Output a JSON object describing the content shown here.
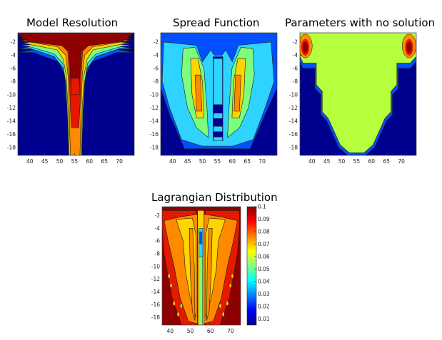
{
  "chart_data": [
    {
      "type": "heatmap",
      "title": "Model Resolution",
      "x_ticks": [
        40,
        45,
        50,
        55,
        60,
        65,
        70
      ],
      "y_ticks": [
        -2,
        -4,
        -6,
        -8,
        -10,
        -12,
        -14,
        -16,
        -18
      ],
      "xlim": [
        36,
        75
      ],
      "ylim": [
        -19.2,
        -0.6
      ],
      "description_of_field": "high values along top edge and a narrow vertical plume centered near x=55 reaching to the bottom; low values elsewhere"
    },
    {
      "type": "heatmap",
      "title": "Spread Function",
      "x_ticks": [
        40,
        45,
        50,
        55,
        60,
        65,
        70
      ],
      "y_ticks": [
        -2,
        -4,
        -6,
        -8,
        -10,
        -12,
        -14,
        -16,
        -18
      ],
      "xlim": [
        36,
        75
      ],
      "ylim": [
        -19.2,
        -0.6
      ]
    },
    {
      "type": "heatmap",
      "title": "Parameters with no solution",
      "x_ticks": [
        40,
        45,
        50,
        55,
        60,
        65,
        70
      ],
      "y_ticks": [
        -2,
        -4,
        -6,
        -8,
        -10,
        -12,
        -14,
        -16,
        -18
      ],
      "xlim": [
        36,
        75
      ],
      "ylim": [
        -19.2,
        -0.6
      ]
    },
    {
      "type": "heatmap",
      "title": "Lagrangian Distribution",
      "x_ticks": [
        40,
        50,
        60,
        70
      ],
      "y_ticks": [
        -2,
        -4,
        -6,
        -8,
        -10,
        -12,
        -14,
        -16,
        -18
      ],
      "xlim": [
        36,
        75
      ],
      "ylim": [
        -19.2,
        -0.6
      ],
      "colorbar": {
        "ticks": [
          "0.1",
          "0.09",
          "0.08",
          "0.07",
          "0.06",
          "0.05",
          "0.04",
          "0.03",
          "0.02",
          "0.01"
        ],
        "range": [
          0.005,
          0.1
        ],
        "colormap": "jet"
      }
    }
  ],
  "colors": {
    "dark_blue": "#00008f",
    "blue": "#0050ff",
    "cyan": "#2ed3ff",
    "green": "#7dff7d",
    "lime": "#b6ff3c",
    "yellow": "#ffd400",
    "orange": "#ff8a00",
    "red": "#e31a00",
    "dark_red": "#8f0000"
  }
}
